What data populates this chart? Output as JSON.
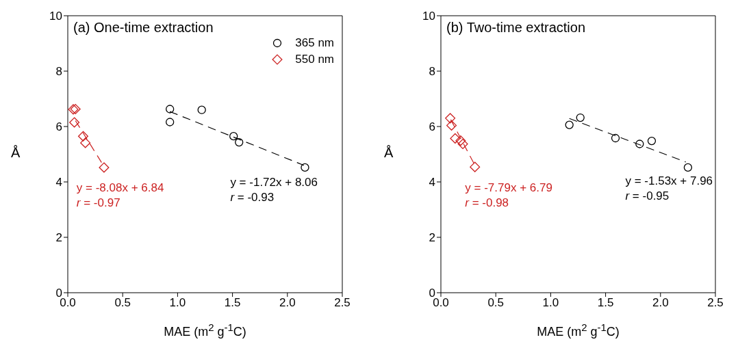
{
  "chart_data": [
    {
      "type": "scatter",
      "title": "(a) One-time extraction",
      "xlabel": "MAE (m$^{2}$ g$^{-1}$C)",
      "ylabel": "Å",
      "xlim": [
        0,
        2.5
      ],
      "xticks": [
        {
          "value": 0,
          "label": "0.0"
        },
        {
          "value": 0.5,
          "label": "0.5"
        },
        {
          "value": 1,
          "label": "1.0"
        },
        {
          "value": 1.5,
          "label": "1.5"
        },
        {
          "value": 2,
          "label": "2.0"
        },
        {
          "value": 2.5,
          "label": "2.5"
        }
      ],
      "ylim": [
        0,
        10
      ],
      "yticks": [
        0,
        2,
        4,
        6,
        8,
        10
      ],
      "grid": false,
      "legend": "top right",
      "series": [
        {
          "name": "365 nm",
          "color": "#000000",
          "marker": "circle",
          "x": [
            0.93,
            0.93,
            1.22,
            1.51,
            1.56,
            2.16
          ],
          "values": [
            6.63,
            6.16,
            6.6,
            5.65,
            5.43,
            4.52
          ]
        },
        {
          "name": "550 nm",
          "color": "#cc2222",
          "marker": "diamond",
          "x": [
            0.05,
            0.07,
            0.06,
            0.14,
            0.16,
            0.33
          ],
          "values": [
            6.62,
            6.63,
            6.15,
            5.65,
            5.41,
            4.52
          ]
        },
        {
          "type": "line",
          "color": "#000000",
          "line_style": "dashed",
          "marker": "none",
          "x": [
            0.93,
            2.15
          ],
          "values": [
            6.54,
            4.6
          ]
        },
        {
          "type": "line",
          "color": "#cc2222",
          "line_style": "dashed",
          "marker": "none",
          "x": [
            0.07,
            0.33
          ],
          "values": [
            6.21,
            4.56
          ]
        }
      ],
      "annotations": [
        "y = -8.08x + 6.84",
        "r = -0.97",
        "y = -1.72x + 8.06",
        "r = -0.93"
      ]
    },
    {
      "type": "scatter",
      "title": "(b) Two-time extraction",
      "xlabel": "MAE (m$^{2}$ g$^{-1}$C)",
      "ylabel": "Å",
      "xlim": [
        0,
        2.5
      ],
      "xticks": [
        {
          "value": 0,
          "label": "0.0"
        },
        {
          "value": 0.5,
          "label": "0.5"
        },
        {
          "value": 1,
          "label": "1.0"
        },
        {
          "value": 1.5,
          "label": "1.5"
        },
        {
          "value": 2,
          "label": "2.0"
        },
        {
          "value": 2.5,
          "label": "2.5"
        }
      ],
      "ylim": [
        0,
        10
      ],
      "yticks": [
        0,
        2,
        4,
        6,
        8,
        10
      ],
      "grid": false,
      "series": [
        {
          "color": "#000000",
          "marker": "circle",
          "x": [
            1.17,
            1.27,
            1.59,
            1.81,
            1.92,
            2.25
          ],
          "values": [
            6.06,
            6.32,
            5.58,
            5.37,
            5.48,
            4.52
          ]
        },
        {
          "color": "#cc2222",
          "marker": "diamond",
          "x": [
            0.085,
            0.097,
            0.13,
            0.18,
            0.2,
            0.31
          ],
          "values": [
            6.3,
            6.04,
            5.57,
            5.49,
            5.37,
            4.54
          ]
        },
        {
          "type": "line",
          "color": "#000000",
          "line_style": "dashed",
          "marker": "none",
          "x": [
            1.17,
            2.23
          ],
          "values": [
            6.29,
            4.72
          ]
        },
        {
          "type": "line",
          "color": "#cc2222",
          "line_style": "dashed",
          "marker": "none",
          "x": [
            0.09,
            0.31
          ],
          "values": [
            6.25,
            4.6
          ]
        }
      ],
      "annotations": [
        "y = -7.79x + 6.79",
        "r = -0.98",
        "y = -1.53x + 7.96",
        "r = -0.95"
      ]
    }
  ]
}
